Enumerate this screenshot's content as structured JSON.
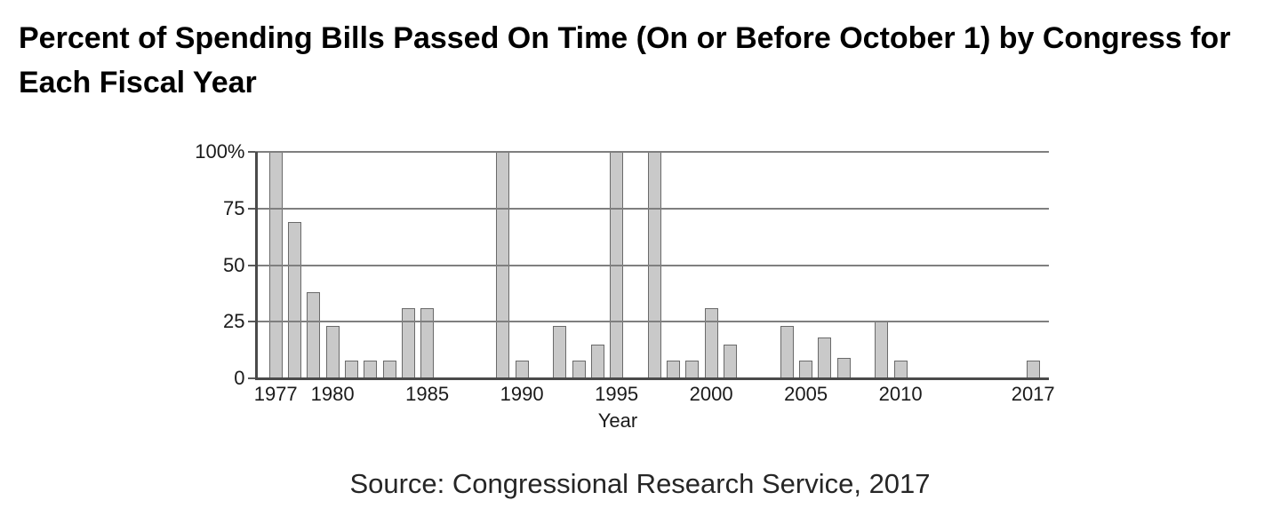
{
  "title_lines": [
    "Percent of Spending Bills Passed On Time (On or Before October 1) by Congress for",
    "Each Fiscal Year"
  ],
  "source_note": "Source: Congressional Research Service, 2017",
  "chart_data": {
    "type": "bar",
    "title": "Percent of Spending Bills Passed On Time (On or Before October 1) by Congress for Each Fiscal Year",
    "xlabel": "Year",
    "ylabel": "",
    "years": [
      1977,
      1978,
      1979,
      1980,
      1981,
      1982,
      1983,
      1984,
      1985,
      1986,
      1987,
      1988,
      1989,
      1990,
      1991,
      1992,
      1993,
      1994,
      1995,
      1996,
      1997,
      1998,
      1999,
      2000,
      2001,
      2002,
      2003,
      2004,
      2005,
      2006,
      2007,
      2008,
      2009,
      2010,
      2011,
      2012,
      2013,
      2014,
      2015,
      2016,
      2017
    ],
    "values": [
      100,
      69,
      38,
      23,
      8,
      8,
      8,
      31,
      31,
      0,
      0,
      0,
      100,
      8,
      0,
      23,
      8,
      15,
      100,
      0,
      100,
      8,
      8,
      31,
      15,
      0,
      0,
      23,
      8,
      18,
      9,
      0,
      25,
      8,
      0,
      0,
      0,
      0,
      0,
      0,
      8
    ],
    "ylim": [
      0,
      100
    ],
    "ytick_values": [
      100,
      75,
      50,
      25,
      0
    ],
    "ytick_labels": [
      "100%",
      "75",
      "50",
      "25",
      "0"
    ],
    "xtick_years": [
      1977,
      1980,
      1985,
      1990,
      1995,
      2000,
      2005,
      2010,
      2017
    ],
    "grid": "horizontal",
    "gridlines_over_bars": true,
    "legend_position": "none",
    "bar_fill_color": "#c9c9c9",
    "bar_border_color": "#6a6a6a",
    "gridline_color": "#7f7f7f",
    "axis_color": "#4a4a4a"
  }
}
